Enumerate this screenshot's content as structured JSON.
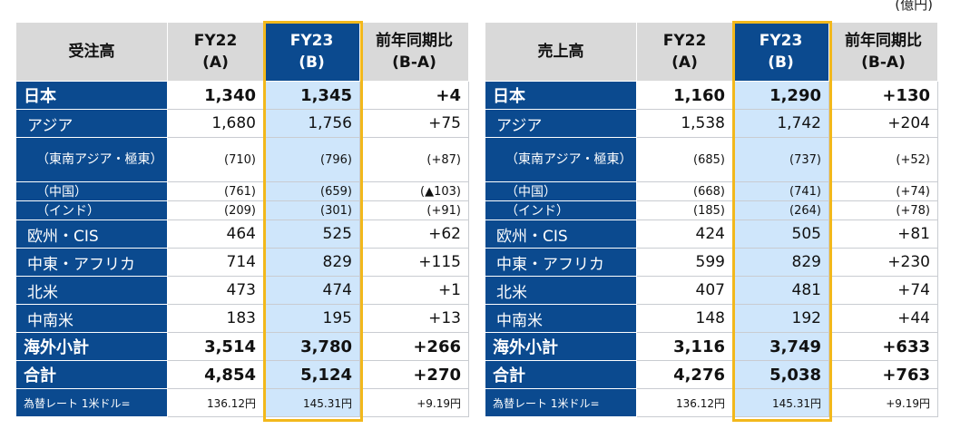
{
  "unit": "(億円)",
  "tables": [
    {
      "header": [
        "受注高",
        "FY22\n(A)",
        "FY23\n(B)",
        "前年同期比\n(B-A)"
      ],
      "rows": [
        {
          "label": "日本",
          "a": "1,340",
          "b": "1,345",
          "diff": "+4"
        },
        {
          "label": "アジア",
          "a": "1,680",
          "b": "1,756",
          "diff": "+75"
        },
        {
          "label": "（東南アジア・極東）",
          "a": "(710)",
          "b": "(796)",
          "diff": "(+87)"
        },
        {
          "label": "（中国）",
          "a": "(761)",
          "b": "(659)",
          "diff": "(▲103)"
        },
        {
          "label": "（インド）",
          "a": "(209)",
          "b": "(301)",
          "diff": "(+91)"
        },
        {
          "label": "欧州・CIS",
          "a": "464",
          "b": "525",
          "diff": "+62"
        },
        {
          "label": "中東・アフリカ",
          "a": "714",
          "b": "829",
          "diff": "+115"
        },
        {
          "label": "北米",
          "a": "473",
          "b": "474",
          "diff": "+1"
        },
        {
          "label": "中南米",
          "a": "183",
          "b": "195",
          "diff": "+13"
        },
        {
          "label": "海外小計",
          "a": "3,514",
          "b": "3,780",
          "diff": "+266"
        },
        {
          "label": "合計",
          "a": "4,854",
          "b": "5,124",
          "diff": "+270"
        },
        {
          "label": "為替レート 1米ドル=",
          "a": "136.12円",
          "b": "145.31円",
          "diff": "+9.19円"
        }
      ]
    },
    {
      "header": [
        "売上高",
        "FY22\n(A)",
        "FY23\n(B)",
        "前年同期比\n(B-A)"
      ],
      "rows": [
        {
          "label": "日本",
          "a": "1,160",
          "b": "1,290",
          "diff": "+130"
        },
        {
          "label": "アジア",
          "a": "1,538",
          "b": "1,742",
          "diff": "+204"
        },
        {
          "label": "（東南アジア・極東）",
          "a": "(685)",
          "b": "(737)",
          "diff": "(+52)"
        },
        {
          "label": "（中国）",
          "a": "(668)",
          "b": "(741)",
          "diff": "(+74)"
        },
        {
          "label": "（インド）",
          "a": "(185)",
          "b": "(264)",
          "diff": "(+78)"
        },
        {
          "label": "欧州・CIS",
          "a": "424",
          "b": "505",
          "diff": "+81"
        },
        {
          "label": "中東・アフリカ",
          "a": "599",
          "b": "829",
          "diff": "+230"
        },
        {
          "label": "北米",
          "a": "407",
          "b": "481",
          "diff": "+74"
        },
        {
          "label": "中南米",
          "a": "148",
          "b": "192",
          "diff": "+44"
        },
        {
          "label": "海外小計",
          "a": "3,116",
          "b": "3,749",
          "diff": "+633"
        },
        {
          "label": "合計",
          "a": "4,276",
          "b": "5,038",
          "diff": "+763"
        },
        {
          "label": "為替レート 1米ドル=",
          "a": "136.12円",
          "b": "145.31円",
          "diff": "+9.19円"
        }
      ]
    }
  ]
}
